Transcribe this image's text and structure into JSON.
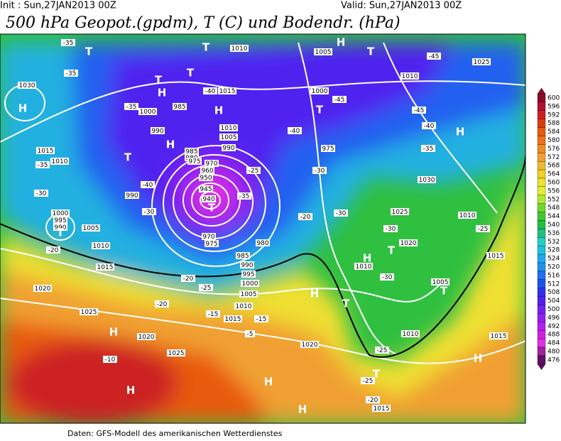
{
  "header": {
    "init": "Init : Sun,27JAN2013 00Z",
    "valid": "Valid: Sun,27JAN2013 00Z",
    "title": "500 hPa Geopot.(gpdm), T (C) und Bodendr. (hPa)"
  },
  "map_labels": [
    "-35",
    "T",
    "-35",
    "1030",
    "H",
    "-35",
    "1000",
    "985",
    "990",
    "H",
    "T",
    "1015",
    "1010",
    "-35",
    "-30",
    "990",
    "-40",
    "-30",
    "1000",
    "995",
    "990",
    "T",
    "1005",
    "-20",
    "1010",
    "1015",
    "1020",
    "1025",
    "H",
    "1020",
    "-10",
    "1025",
    "H",
    "T",
    "1010",
    "T",
    "H",
    "T",
    "1015",
    "H",
    "-40",
    "1010",
    "1005",
    "990",
    "985",
    "980",
    "975",
    "970",
    "960",
    "950",
    "945",
    "940",
    "T",
    "-35",
    "-25",
    "970",
    "975",
    "980",
    "985",
    "990",
    "995",
    "1000",
    "1005",
    "1010",
    "1015",
    "-25",
    "-20",
    "-20",
    "-15",
    "-15",
    "-5",
    "H",
    "1005",
    "H",
    "T",
    "-45",
    "1025",
    "1010",
    "1000",
    "-45",
    "T",
    "-45",
    "H",
    "-40",
    "-40",
    "975",
    "-35",
    "1030",
    "-30",
    "1025",
    "1010",
    "-25",
    "-30",
    "1020",
    "-20",
    "-30",
    "H",
    "T",
    "1015",
    "1010",
    "-30",
    "1005",
    "T",
    "H",
    "T",
    "1010",
    "1020",
    "1015",
    "H",
    "-25",
    "-25",
    "-20",
    "1015",
    "T",
    "H"
  ],
  "colorbar": {
    "ticks": [
      600,
      596,
      592,
      588,
      584,
      580,
      576,
      572,
      568,
      564,
      560,
      556,
      552,
      548,
      544,
      540,
      536,
      532,
      528,
      524,
      520,
      516,
      512,
      508,
      504,
      500,
      496,
      492,
      488,
      484,
      480,
      476
    ],
    "colors": [
      "#8b0a2a",
      "#b01030",
      "#cc2020",
      "#dd3a10",
      "#e85a10",
      "#f07020",
      "#f08a20",
      "#f0a030",
      "#f0b830",
      "#f0d020",
      "#f0e030",
      "#e0f030",
      "#b0e830",
      "#70d830",
      "#40c830",
      "#20c040",
      "#20c080",
      "#20d0c0",
      "#20c0e0",
      "#20a8f0",
      "#2090f0",
      "#2070f0",
      "#2050f0",
      "#3030f0",
      "#5020f0",
      "#7020f0",
      "#9020f0",
      "#b020f0",
      "#d020e0",
      "#e030e0",
      "#a020a0",
      "#601060"
    ]
  },
  "footer": "Daten: GFS-Modell des amerikanischen Wetterdienstes"
}
